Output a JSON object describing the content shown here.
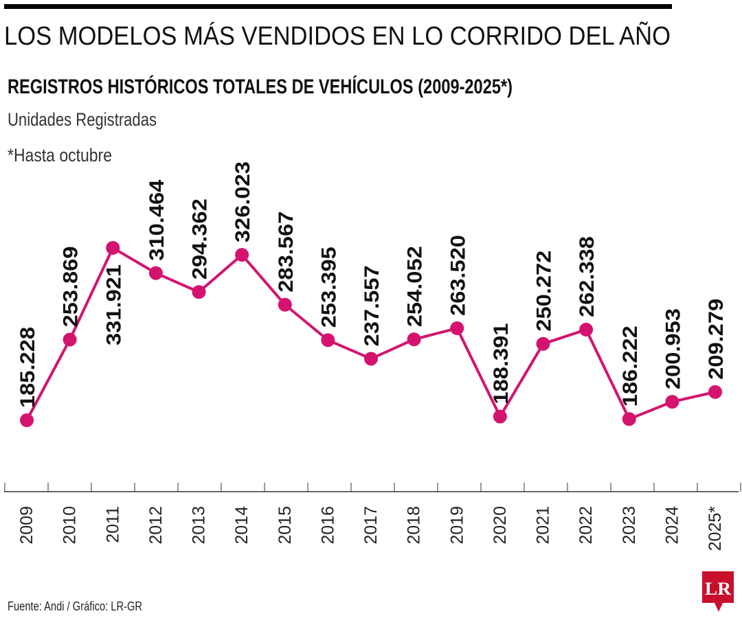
{
  "header": {
    "title": "LOS MODELOS MÁS VENDIDOS EN LO CORRIDO DEL AÑO",
    "subtitle": "REGISTROS HISTÓRICOS TOTALES DE VEHÍCULOS (2009-2025*)",
    "unit": "Unidades Registradas",
    "note": "*Hasta octubre"
  },
  "footer": {
    "source": "Fuente: Andi / Gráfico: LR-GR",
    "logo_text": "LR"
  },
  "colors": {
    "line": "#d4136f",
    "logo": "#c8102e",
    "text": "#111111"
  },
  "chart_data": {
    "type": "line",
    "title": "REGISTROS HISTÓRICOS TOTALES DE VEHÍCULOS (2009-2025*)",
    "ylabel": "Unidades Registradas",
    "categories": [
      "2009",
      "2010",
      "2011",
      "2012",
      "2013",
      "2014",
      "2015",
      "2016",
      "2017",
      "2018",
      "2019",
      "2020",
      "2021",
      "2022",
      "2023",
      "2024",
      "2025*"
    ],
    "values": [
      185228,
      253869,
      331921,
      310464,
      294362,
      326023,
      283567,
      253395,
      237557,
      254052,
      263520,
      188391,
      250272,
      262338,
      186222,
      200953,
      209279
    ],
    "data_labels": [
      "185.228",
      "253.869",
      "331.921",
      "310.464",
      "294.362",
      "326.023",
      "283.567",
      "253.395",
      "237.557",
      "254.052",
      "263.520",
      "188.391",
      "250.272",
      "262.338",
      "186.222",
      "200.953",
      "209.279"
    ],
    "label_position": [
      "above",
      "above",
      "below",
      "above",
      "above",
      "above",
      "above",
      "above",
      "above",
      "above",
      "above",
      "above",
      "above",
      "above",
      "above",
      "above",
      "above"
    ],
    "grid": false,
    "legend": "none"
  }
}
